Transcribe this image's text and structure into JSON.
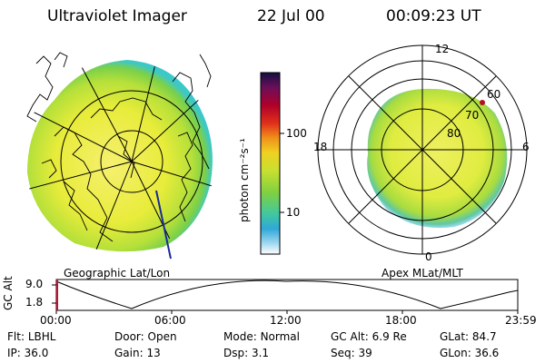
{
  "header": {
    "title": "Ultraviolet Imager",
    "date": "22 Jul 00",
    "time": "00:09:23 UT"
  },
  "colorbar": {
    "unit_label": "photon cm⁻²s⁻¹",
    "ticks": [
      "100",
      "10"
    ],
    "colors": [
      "#101040",
      "#6a0f5a",
      "#b0002a",
      "#e0301a",
      "#f0901a",
      "#f0d020",
      "#c8e030",
      "#80d040",
      "#40c8a0",
      "#30a8d8",
      "#a0d8f0",
      "#ffffff"
    ]
  },
  "left_map": {
    "caption": "Geographic Lat/Lon"
  },
  "right_map": {
    "caption": "Apex MLat/MLT",
    "mlt_labels": {
      "top": "12",
      "left": "18",
      "right": "6",
      "bottom": "0"
    },
    "lat_labels": [
      "60",
      "70",
      "80"
    ]
  },
  "timeline": {
    "ylabel": "GC Alt",
    "y_ticks": [
      "9.0",
      "1.8"
    ],
    "x_ticks": [
      "00:00",
      "06:00",
      "12:00",
      "18:00",
      "23:59"
    ]
  },
  "info_rows": [
    [
      {
        "label": "Flt:",
        "value": "LBHL"
      },
      {
        "label": "Door:",
        "value": "Open"
      },
      {
        "label": "Mode:",
        "value": "Normal"
      },
      {
        "label": "GC Alt:",
        "value": "6.9 Re"
      },
      {
        "label": "GLat:",
        "value": "84.7"
      }
    ],
    [
      {
        "label": "IP:",
        "value": "36.0"
      },
      {
        "label": "Gain:",
        "value": "13"
      },
      {
        "label": "Dsp:",
        "value": "3.1"
      },
      {
        "label": "Seq:",
        "value": "39"
      },
      {
        "label": "GLon:",
        "value": "36.6"
      }
    ]
  ]
}
